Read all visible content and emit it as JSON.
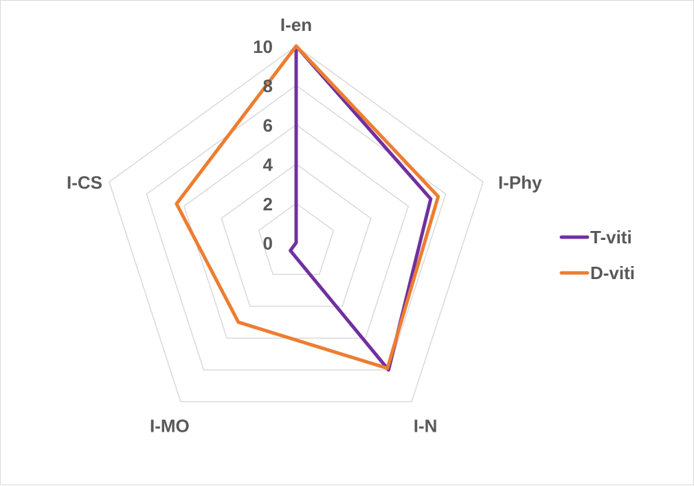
{
  "chart_data": {
    "type": "radar",
    "categories": [
      "I-en",
      "I-Phy",
      "I-N",
      "I-MO",
      "I-CS"
    ],
    "ticks": [
      "0",
      "2",
      "4",
      "6",
      "8",
      "10"
    ],
    "rlim": [
      0,
      10
    ],
    "grid": true,
    "legend_position": "right",
    "series": [
      {
        "name": "T-viti",
        "values": [
          10,
          7.2,
          8.0,
          0.5,
          0
        ],
        "color": "#7030a0"
      },
      {
        "name": "D-viti",
        "values": [
          10,
          7.6,
          7.9,
          5.0,
          6.4
        ],
        "color": "#ed7d31"
      }
    ]
  }
}
